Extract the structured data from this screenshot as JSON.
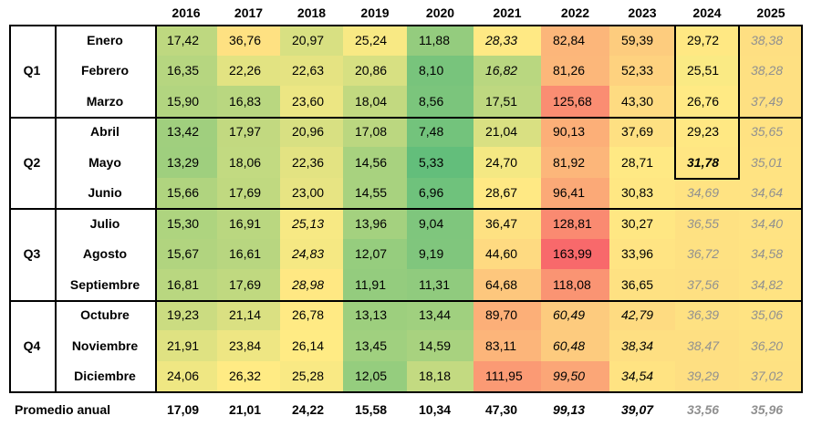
{
  "chart_data": {
    "type": "table",
    "columns": [
      "2016",
      "2017",
      "2018",
      "2019",
      "2020",
      "2021",
      "2022",
      "2023",
      "2024",
      "2025"
    ],
    "quarters": [
      {
        "label": "Q1",
        "months": [
          "Enero",
          "Febrero",
          "Marzo"
        ]
      },
      {
        "label": "Q2",
        "months": [
          "Abril",
          "Mayo",
          "Junio"
        ]
      },
      {
        "label": "Q3",
        "months": [
          "Julio",
          "Agosto",
          "Septiembre"
        ]
      },
      {
        "label": "Q4",
        "months": [
          "Octubre",
          "Noviembre",
          "Diciembre"
        ]
      }
    ],
    "rows": [
      {
        "month": "Enero",
        "values": [
          "17,42",
          "36,76",
          "20,97",
          "25,24",
          "11,88",
          "28,33",
          "82,84",
          "59,39",
          "29,72",
          "38,38"
        ]
      },
      {
        "month": "Febrero",
        "values": [
          "16,35",
          "22,26",
          "22,63",
          "20,86",
          "8,10",
          "16,82",
          "81,26",
          "52,33",
          "25,51",
          "38,28"
        ]
      },
      {
        "month": "Marzo",
        "values": [
          "15,90",
          "16,83",
          "23,60",
          "18,04",
          "8,56",
          "17,51",
          "125,68",
          "43,30",
          "26,76",
          "37,49"
        ]
      },
      {
        "month": "Abril",
        "values": [
          "13,42",
          "17,97",
          "20,96",
          "17,08",
          "7,48",
          "21,04",
          "90,13",
          "37,69",
          "29,23",
          "35,65"
        ]
      },
      {
        "month": "Mayo",
        "values": [
          "13,29",
          "18,06",
          "22,36",
          "14,56",
          "5,33",
          "24,70",
          "81,92",
          "28,71",
          "31,78",
          "35,01"
        ]
      },
      {
        "month": "Junio",
        "values": [
          "15,66",
          "17,69",
          "23,00",
          "14,55",
          "6,96",
          "28,67",
          "96,41",
          "30,83",
          "34,69",
          "34,64"
        ]
      },
      {
        "month": "Julio",
        "values": [
          "15,30",
          "16,91",
          "25,13",
          "13,96",
          "9,04",
          "36,47",
          "128,81",
          "30,27",
          "36,55",
          "34,40"
        ]
      },
      {
        "month": "Agosto",
        "values": [
          "15,67",
          "16,61",
          "24,83",
          "12,07",
          "9,19",
          "44,60",
          "163,99",
          "33,96",
          "36,72",
          "34,58"
        ]
      },
      {
        "month": "Septiembre",
        "values": [
          "16,81",
          "17,69",
          "28,98",
          "11,91",
          "11,31",
          "64,68",
          "118,08",
          "36,65",
          "37,56",
          "34,82"
        ]
      },
      {
        "month": "Octubre",
        "values": [
          "19,23",
          "21,14",
          "26,78",
          "13,13",
          "13,44",
          "89,70",
          "60,49",
          "42,79",
          "36,39",
          "35,06"
        ]
      },
      {
        "month": "Noviembre",
        "values": [
          "21,91",
          "23,84",
          "26,14",
          "13,45",
          "14,59",
          "83,11",
          "60,48",
          "38,34",
          "38,47",
          "36,20"
        ]
      },
      {
        "month": "Diciembre",
        "values": [
          "24,06",
          "26,32",
          "25,28",
          "12,05",
          "18,18",
          "111,95",
          "99,50",
          "34,54",
          "39,29",
          "37,02"
        ]
      }
    ],
    "italic_cells": [
      [
        0,
        5
      ],
      [
        1,
        5
      ],
      [
        6,
        2
      ],
      [
        7,
        2
      ],
      [
        8,
        2
      ],
      [
        4,
        8
      ],
      [
        9,
        6
      ],
      [
        10,
        6
      ],
      [
        11,
        6
      ],
      [
        9,
        7
      ],
      [
        10,
        7
      ],
      [
        11,
        7
      ]
    ],
    "bold_cells": [
      [
        4,
        8
      ]
    ],
    "projected_cells": [
      [
        0,
        9
      ],
      [
        1,
        9
      ],
      [
        2,
        9
      ],
      [
        3,
        9
      ],
      [
        4,
        9
      ],
      [
        5,
        9
      ],
      [
        6,
        9
      ],
      [
        7,
        9
      ],
      [
        8,
        9
      ],
      [
        9,
        9
      ],
      [
        10,
        9
      ],
      [
        11,
        9
      ],
      [
        5,
        8
      ],
      [
        6,
        8
      ],
      [
        7,
        8
      ],
      [
        8,
        8
      ],
      [
        9,
        8
      ],
      [
        10,
        8
      ],
      [
        11,
        8
      ]
    ],
    "summary": {
      "label": "Promedio anual",
      "values": [
        "17,09",
        "21,01",
        "24,22",
        "15,58",
        "10,34",
        "47,30",
        "99,13",
        "39,07",
        "33,56",
        "35,96"
      ],
      "italic": [
        6,
        7,
        8,
        9
      ],
      "projected": [
        8,
        9
      ]
    },
    "color_scale": {
      "low": "#63be7b",
      "mid": "#ffeb84",
      "high": "#f8696b"
    },
    "colors": {
      "projected_text": "#909090",
      "border": "#000000",
      "background": "#ffffff"
    }
  }
}
